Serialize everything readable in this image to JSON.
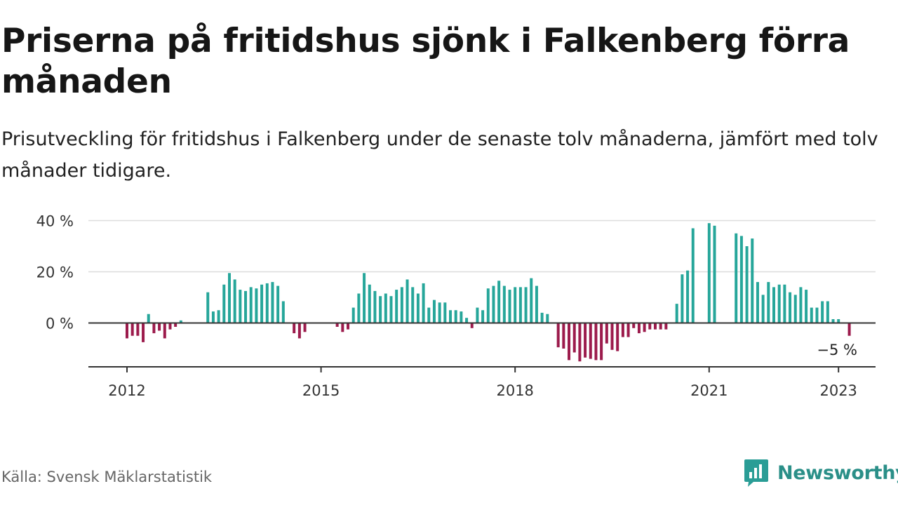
{
  "header": {
    "title": "Priserna på fritidshus sjönk i Falkenberg förra månaden",
    "subtitle": "Prisutveckling för fritidshus i Falkenberg under de senaste tolv månaderna, jämfört med tolv månader tidigare."
  },
  "footer": {
    "source": "Källa: Svensk Mäklarstatistik",
    "brand": "Newsworthy",
    "brand_icon": "newsworthy-logo-icon",
    "brand_color": "#2a9d96"
  },
  "colors": {
    "positive": "#26a69a",
    "negative": "#9c1b4c",
    "grid": "#dddddd",
    "axis": "#333333"
  },
  "chart_data": {
    "type": "bar",
    "ylim": [
      -17,
      40
    ],
    "yticks": [
      {
        "value": 0,
        "label": "0 %"
      },
      {
        "value": 20,
        "label": "20 %"
      },
      {
        "value": 40,
        "label": "40 %"
      }
    ],
    "xticks": [
      {
        "label": "2012",
        "date": "2012-01"
      },
      {
        "label": "2015",
        "date": "2015-01"
      },
      {
        "label": "2018",
        "date": "2018-01"
      },
      {
        "label": "2021",
        "date": "2021-01"
      },
      {
        "label": "2023",
        "date": "2023-01"
      }
    ],
    "start": "2012-01",
    "values": [
      -6,
      -5,
      -5,
      -7.5,
      3.5,
      -4,
      -3,
      -6,
      -2.5,
      -1.5,
      1,
      null,
      null,
      null,
      null,
      12,
      4.5,
      5,
      15,
      19.5,
      17,
      13,
      12.5,
      14,
      13.5,
      15,
      15.5,
      16,
      14.5,
      8.5,
      null,
      -4,
      -6,
      -3.5,
      null,
      null,
      null,
      null,
      null,
      -1.5,
      -3.5,
      -2.5,
      6,
      11.5,
      19.5,
      15,
      12.5,
      10.5,
      11.5,
      10.5,
      13,
      14,
      17,
      14,
      11.5,
      15.5,
      6,
      9,
      8,
      8,
      5,
      5,
      4.5,
      2,
      -2,
      6,
      5,
      13.5,
      14.5,
      16.5,
      14.5,
      13,
      14,
      14,
      14,
      17.5,
      14.5,
      4,
      3.5,
      null,
      -9.5,
      -10,
      -14.5,
      -11.5,
      -15,
      -13.5,
      -14,
      -14.5,
      -14.5,
      -8,
      -10.5,
      -11,
      -5.5,
      -5.5,
      -2,
      -4,
      -3.5,
      -2.5,
      -2.5,
      -2.5,
      -2.5,
      null,
      7.5,
      19,
      20.5,
      37,
      null,
      null,
      39,
      38,
      null,
      null,
      null,
      35,
      34,
      30,
      33,
      16,
      11,
      16,
      14,
      15,
      15,
      12,
      11,
      14,
      13,
      6,
      6,
      8.5,
      8.5,
      1.5,
      1.5,
      null,
      -5
    ],
    "last_label": "−5 %"
  }
}
